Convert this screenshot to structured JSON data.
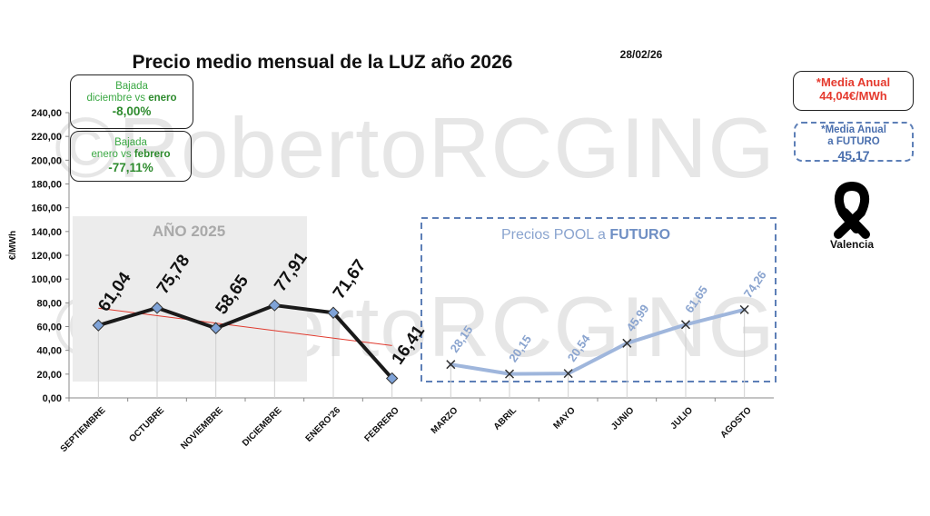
{
  "header": {
    "title": "Precio medio mensual de la LUZ año 2026",
    "date": "28/02/26"
  },
  "watermark": "©RobertoRCGING",
  "boxes": {
    "dic_vs_ene": {
      "line1": "Bajada",
      "line2_prefix": "diciembre vs ",
      "line2_bold": "enero",
      "value": "-8,00%"
    },
    "ene_vs_feb": {
      "line1": "Bajada",
      "line2_prefix": "enero vs ",
      "line2_bold": "febrero",
      "value": "-77,11%"
    },
    "media_anual": {
      "line1": "*Media Anual",
      "line2": "44,04€/MWh"
    },
    "media_futuro": {
      "line1": "*Media Anual",
      "line2": "a FUTURO",
      "value": "45,17"
    }
  },
  "icon": {
    "name": "black-ribbon-icon",
    "label": "Valencia"
  },
  "chart_data": {
    "type": "line",
    "ylabel": "€/MWh",
    "ylim": [
      0,
      240
    ],
    "yticks": [
      "0,00",
      "20,00",
      "40,00",
      "60,00",
      "80,00",
      "100,00",
      "120,00",
      "140,00",
      "160,00",
      "180,00",
      "200,00",
      "220,00",
      "240,00"
    ],
    "categories": [
      "SEPTIEMBRE",
      "OCTUBRE",
      "NOVIEMBRE",
      "DICIEMBRE",
      "ENERO'26",
      "FEBRERO",
      "MARZO",
      "ABRIL",
      "MAYO",
      "JUNIO",
      "JULIO",
      "AGOSTO"
    ],
    "regions": {
      "year_2025_label": "AÑO 2025",
      "futuro_label_prefix": "Precios POOL a ",
      "futuro_label_bold": "FUTURO"
    },
    "series": [
      {
        "values": [
          61.04,
          75.78,
          58.65,
          77.91,
          71.67,
          16.41,
          null,
          null,
          null,
          null,
          null,
          null
        ],
        "labels": [
          "61,04",
          "75,78",
          "58,65",
          "77,91",
          "71,67",
          "16,41"
        ],
        "color": "#1a1a1a",
        "marker": "diamond",
        "marker_color": "#7fa3d8"
      },
      {
        "values": [
          null,
          null,
          null,
          null,
          null,
          null,
          28.15,
          20.15,
          20.54,
          45.99,
          61.65,
          74.26
        ],
        "labels": [
          "28,15",
          "20,15",
          "20,54",
          "45,99",
          "61,65",
          "74,26"
        ],
        "color": "#9fb6dc",
        "marker": "x",
        "marker_color": "#333333"
      }
    ],
    "trendline": {
      "color": "#e03a2e",
      "start": 75.5,
      "end": 44.0
    },
    "colors": {
      "future_box": "#5d7fb7",
      "year_2025_bg": "#ececec"
    }
  }
}
